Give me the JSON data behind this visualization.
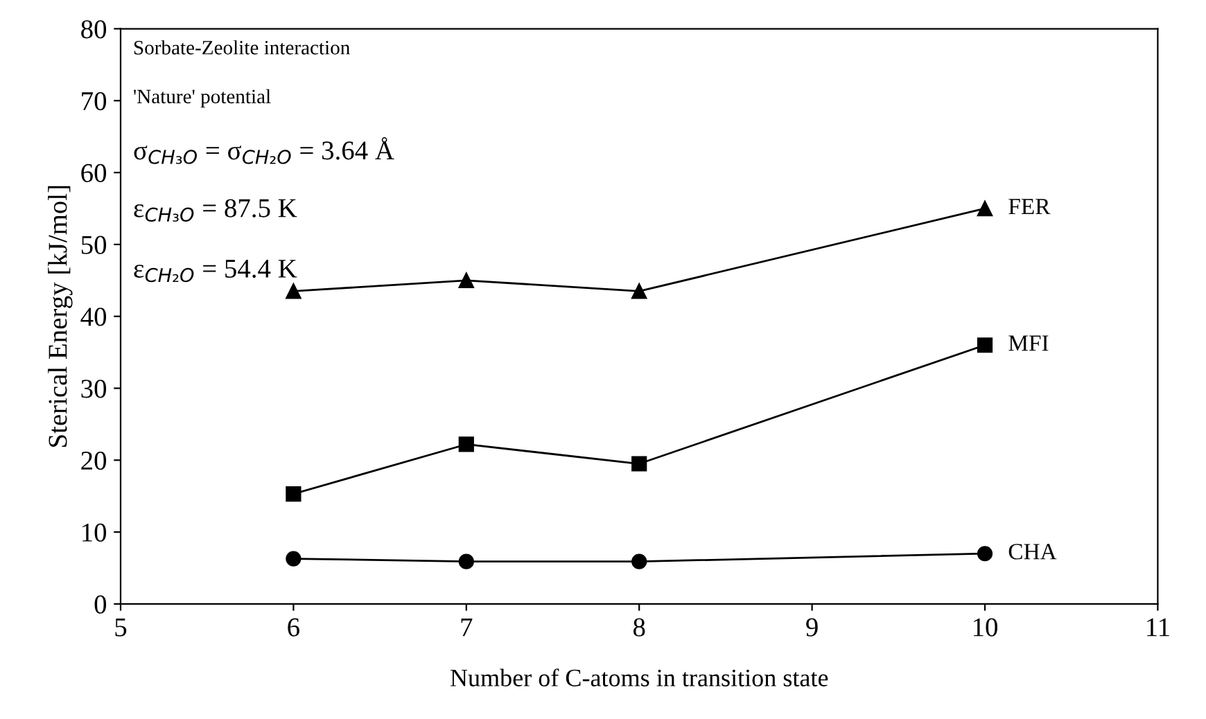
{
  "chart_data": {
    "type": "line",
    "xlabel": "Number of C-atoms in transition state",
    "ylabel": "Sterical Energy [kJ/mol]",
    "xlim": [
      5,
      11
    ],
    "xticks": [
      5,
      6,
      7,
      8,
      9,
      10,
      11
    ],
    "ylim": [
      0,
      80
    ],
    "yticks": [
      0,
      10,
      20,
      30,
      40,
      50,
      60,
      70,
      80
    ],
    "x": [
      6,
      7,
      8,
      10
    ],
    "series": [
      {
        "name": "FER",
        "color": "#000000",
        "marker": "triangle",
        "values": [
          43.5,
          45,
          43.5,
          55
        ]
      },
      {
        "name": "MFI",
        "color": "#000000",
        "marker": "square",
        "values": [
          15.3,
          22.2,
          19.5,
          36
        ]
      },
      {
        "name": "CHA",
        "color": "#000000",
        "marker": "circle",
        "values": [
          6.3,
          5.9,
          5.9,
          7
        ]
      }
    ],
    "line_style": "solid",
    "grid": false,
    "legend": false,
    "annotations": [
      "Sorbate-Zeolite interaction",
      "'Nature' potential",
      "σ$_{CH₃O}$ = σ$_{CH₂O}$ = 3.64 Å",
      "ε$_{CH₃O}$ = 87.5 K",
      "ε$_{CH₂O}$ = 54.4 K"
    ]
  }
}
